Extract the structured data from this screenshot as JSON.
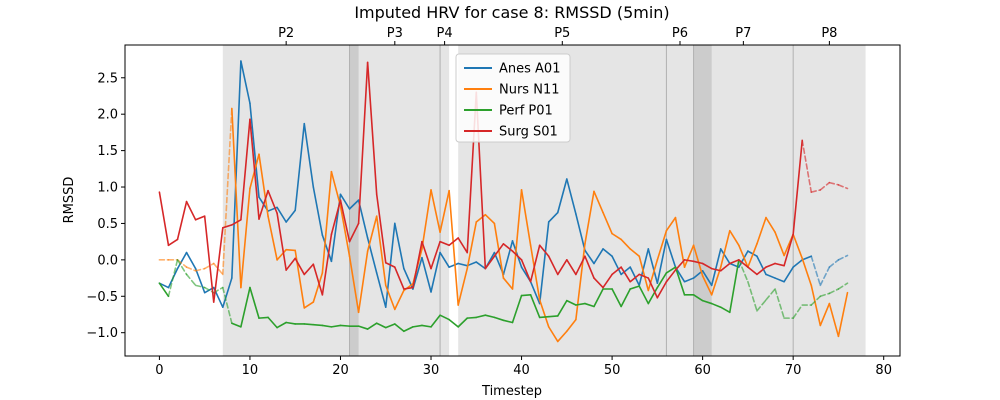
{
  "chart_data": {
    "type": "line",
    "title": "Imputed HRV for case 8: RMSSD (5min)",
    "xlabel": "Timestep",
    "ylabel": "RMSSD",
    "xlim": [
      -3.8,
      81.8
    ],
    "ylim": [
      -1.32,
      2.95
    ],
    "xticks": [
      0,
      10,
      20,
      30,
      40,
      50,
      60,
      70,
      80
    ],
    "yticks": [
      -1.0,
      -0.5,
      0.0,
      0.5,
      1.0,
      1.5,
      2.0,
      2.5
    ],
    "ytick_labels": [
      "−1.0",
      "−0.5",
      "0.0",
      "0.5",
      "1.0",
      "1.5",
      "2.0",
      "2.5"
    ],
    "grid": false,
    "legend_position": "upper-center",
    "phases": [
      {
        "label": "P2",
        "start": 7,
        "end": 21,
        "label_x": 14
      },
      {
        "label": "P3",
        "start": 21,
        "end": 31,
        "label_x": 26
      },
      {
        "label": "P4",
        "start": 31,
        "end": 32,
        "label_x": 31.5
      },
      {
        "label": "P5",
        "start": 33,
        "end": 56,
        "label_x": 44.5
      },
      {
        "label": "P6",
        "start": 56,
        "end": 59,
        "label_x": 57.5
      },
      {
        "label": "P7",
        "start": 59,
        "end": 70,
        "label_x": 64.5
      },
      {
        "label": "P8",
        "start": 70,
        "end": 78,
        "label_x": 74
      }
    ],
    "dark_bands": [
      [
        21,
        22
      ],
      [
        59,
        61
      ]
    ],
    "phase_lines": [
      21,
      31,
      56,
      59,
      70
    ],
    "series": [
      {
        "name": "Anes A01",
        "color": "#1f77b4",
        "x": [
          0,
          1,
          2,
          3,
          4,
          5,
          6,
          7,
          8,
          9,
          10,
          11,
          12,
          13,
          14,
          15,
          16,
          17,
          18,
          19,
          20,
          21,
          22,
          23,
          24,
          25,
          26,
          27,
          28,
          29,
          30,
          31,
          32,
          33,
          34,
          35,
          36,
          37,
          38,
          39,
          40,
          41,
          42,
          43,
          44,
          45,
          46,
          47,
          48,
          49,
          50,
          51,
          52,
          53,
          54,
          55,
          56,
          57,
          58,
          59,
          60,
          61,
          62,
          63,
          64,
          65,
          66,
          67,
          68,
          69,
          70,
          71,
          72,
          73,
          74,
          75,
          76
        ],
        "y": [
          -0.32,
          -0.38,
          -0.12,
          0.1,
          -0.12,
          -0.45,
          -0.38,
          -0.65,
          -0.25,
          2.73,
          2.15,
          0.86,
          0.67,
          0.72,
          0.52,
          0.68,
          1.87,
          1.0,
          0.34,
          -0.02,
          0.9,
          0.7,
          0.82,
          0.3,
          -0.18,
          -0.65,
          0.5,
          -0.12,
          -0.4,
          0.03,
          -0.44,
          0.1,
          -0.1,
          -0.05,
          -0.08,
          -0.03,
          -0.12,
          0.1,
          -0.2,
          0.26,
          -0.1,
          -0.3,
          -0.6,
          0.52,
          0.65,
          1.11,
          0.63,
          0.13,
          -0.05,
          0.15,
          0.05,
          -0.2,
          -0.1,
          -0.35,
          0.15,
          -0.32,
          0.28,
          -0.1,
          -0.3,
          -0.25,
          -0.15,
          -0.35,
          0.15,
          -0.05,
          -0.1,
          0.12,
          0.05,
          -0.2,
          -0.25,
          -0.3,
          -0.1,
          0.0,
          0.05,
          -0.35,
          -0.1,
          0.0,
          0.06
        ],
        "imputed_from": 72
      },
      {
        "name": "Nurs N11",
        "color": "#ff7f0e",
        "x": [
          0,
          1,
          2,
          3,
          4,
          5,
          6,
          7,
          8,
          9,
          10,
          11,
          12,
          13,
          14,
          15,
          16,
          17,
          18,
          19,
          20,
          21,
          22,
          23,
          24,
          25,
          26,
          27,
          28,
          29,
          30,
          31,
          32,
          33,
          34,
          35,
          36,
          37,
          38,
          39,
          40,
          41,
          42,
          43,
          44,
          45,
          46,
          47,
          48,
          49,
          50,
          51,
          52,
          53,
          54,
          55,
          56,
          57,
          58,
          59,
          60,
          61,
          62,
          63,
          64,
          65,
          66,
          67,
          68,
          69,
          70,
          71,
          72,
          73,
          74,
          75,
          76
        ],
        "y": [
          0.0,
          0.0,
          0.0,
          -0.1,
          -0.15,
          -0.12,
          -0.05,
          -0.2,
          2.08,
          -0.38,
          0.98,
          1.45,
          0.6,
          0.0,
          0.14,
          0.13,
          -0.66,
          -0.58,
          -0.18,
          1.21,
          0.74,
          0.05,
          -0.72,
          0.12,
          0.6,
          -0.35,
          -0.68,
          -0.42,
          -0.33,
          0.15,
          0.96,
          0.38,
          0.95,
          -0.62,
          -0.12,
          0.52,
          0.62,
          0.5,
          -0.25,
          -0.4,
          0.96,
          0.2,
          -0.55,
          -0.92,
          -1.12,
          -0.98,
          -0.82,
          0.22,
          0.94,
          0.65,
          0.36,
          0.28,
          0.15,
          0.05,
          -0.42,
          0.0,
          0.4,
          0.58,
          -0.1,
          0.2,
          -0.22,
          -0.48,
          -0.1,
          0.4,
          0.2,
          -0.1,
          0.22,
          0.58,
          0.38,
          0.06,
          0.35,
          0.02,
          -0.35,
          -0.9,
          -0.6,
          -1.05,
          -0.45
        ],
        "imputed_until": 8
      },
      {
        "name": "Perf P01",
        "color": "#2ca02c",
        "x": [
          0,
          1,
          2,
          3,
          4,
          5,
          6,
          7,
          8,
          9,
          10,
          11,
          12,
          13,
          14,
          15,
          16,
          17,
          18,
          19,
          20,
          21,
          22,
          23,
          24,
          25,
          26,
          27,
          28,
          29,
          30,
          31,
          32,
          33,
          34,
          35,
          36,
          37,
          38,
          39,
          40,
          41,
          42,
          43,
          44,
          45,
          46,
          47,
          48,
          49,
          50,
          51,
          52,
          53,
          54,
          55,
          56,
          57,
          58,
          59,
          60,
          61,
          62,
          63,
          64,
          65,
          66,
          67,
          68,
          69,
          70,
          71,
          72,
          73,
          74,
          75,
          76
        ],
        "y": [
          -0.32,
          -0.5,
          0.0,
          -0.2,
          -0.35,
          -0.38,
          -0.45,
          -0.38,
          -0.87,
          -0.92,
          -0.38,
          -0.8,
          -0.79,
          -0.93,
          -0.86,
          -0.88,
          -0.88,
          -0.89,
          -0.9,
          -0.92,
          -0.9,
          -0.91,
          -0.91,
          -0.95,
          -0.87,
          -0.93,
          -0.88,
          -0.98,
          -0.92,
          -0.9,
          -0.92,
          -0.76,
          -0.82,
          -0.92,
          -0.8,
          -0.79,
          -0.76,
          -0.79,
          -0.83,
          -0.86,
          -0.49,
          -0.48,
          -0.79,
          -0.78,
          -0.77,
          -0.56,
          -0.62,
          -0.6,
          -0.64,
          -0.4,
          -0.4,
          -0.64,
          -0.4,
          -0.36,
          -0.6,
          -0.38,
          -0.18,
          -0.1,
          -0.48,
          -0.48,
          -0.56,
          -0.6,
          -0.65,
          -0.72,
          0.0,
          -0.3,
          -0.7,
          -0.55,
          -0.4,
          -0.8,
          -0.8,
          -0.62,
          -0.62,
          -0.5,
          -0.46,
          -0.4,
          -0.32
        ],
        "imputed_ranges": [
          [
            1,
            8
          ],
          [
            64,
            70
          ],
          [
            70,
            76
          ]
        ]
      },
      {
        "name": "Surg S01",
        "color": "#d62728",
        "x": [
          0,
          1,
          2,
          3,
          4,
          5,
          6,
          7,
          8,
          9,
          10,
          11,
          12,
          13,
          14,
          15,
          16,
          17,
          18,
          19,
          20,
          21,
          22,
          23,
          24,
          25,
          26,
          27,
          28,
          29,
          30,
          31,
          32,
          33,
          34,
          35,
          36,
          37,
          38,
          39,
          40,
          41,
          42,
          43,
          44,
          45,
          46,
          47,
          48,
          49,
          50,
          51,
          52,
          53,
          54,
          55,
          56,
          57,
          58,
          59,
          60,
          61,
          62,
          63,
          64,
          65,
          66,
          67,
          68,
          69,
          70,
          71,
          72,
          73,
          74,
          75,
          76
        ],
        "y": [
          0.93,
          0.2,
          0.28,
          0.8,
          0.55,
          0.6,
          -0.58,
          0.44,
          0.48,
          0.55,
          1.93,
          0.56,
          0.95,
          0.64,
          -0.14,
          0.02,
          -0.2,
          -0.06,
          -0.48,
          0.35,
          0.82,
          0.25,
          0.5,
          2.71,
          0.9,
          -0.04,
          -0.1,
          -0.4,
          -0.38,
          0.25,
          -0.12,
          0.25,
          0.2,
          0.3,
          0.1,
          2.3,
          -0.12,
          0.05,
          0.22,
          0.12,
          0.0,
          -0.3,
          0.2,
          0.05,
          -0.2,
          0.0,
          -0.2,
          0.05,
          -0.25,
          -0.38,
          -0.2,
          -0.1,
          -0.3,
          -0.2,
          -0.25,
          -0.52,
          -0.3,
          -0.14,
          0.0,
          -0.02,
          -0.05,
          -0.12,
          -0.15,
          -0.05,
          0.0,
          -0.1,
          -0.2,
          -0.1,
          -0.05,
          -0.08,
          0.35,
          1.64,
          0.93,
          0.96,
          1.06,
          1.03,
          0.98
        ],
        "imputed_from": 71
      }
    ]
  }
}
